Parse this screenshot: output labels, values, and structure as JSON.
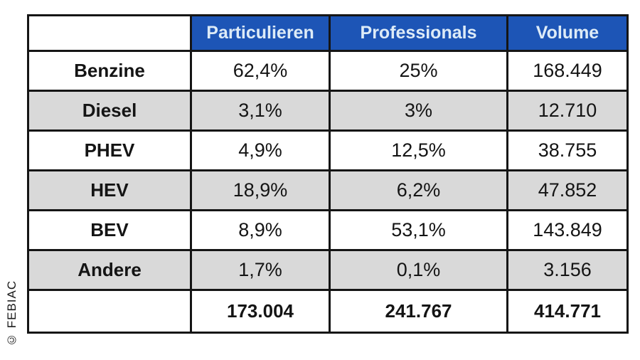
{
  "chart_data": {
    "type": "table",
    "columns": [
      "",
      "Particulieren",
      "Professionals",
      "Volume"
    ],
    "rows": [
      {
        "label": "Benzine",
        "particulieren": "62,4%",
        "professionals": "25%",
        "volume": "168.449"
      },
      {
        "label": "Diesel",
        "particulieren": "3,1%",
        "professionals": "3%",
        "volume": "12.710"
      },
      {
        "label": "PHEV",
        "particulieren": "4,9%",
        "professionals": "12,5%",
        "volume": "38.755"
      },
      {
        "label": "HEV",
        "particulieren": "18,9%",
        "professionals": "6,2%",
        "volume": "47.852"
      },
      {
        "label": "BEV",
        "particulieren": "8,9%",
        "professionals": "53,1%",
        "volume": "143.849"
      },
      {
        "label": "Andere",
        "particulieren": "1,7%",
        "professionals": "0,1%",
        "volume": "3.156"
      }
    ],
    "totals": {
      "label": "",
      "particulieren": "173.004",
      "professionals": "241.767",
      "volume": "414.771"
    },
    "title": "",
    "layout_hints": {
      "shaded_rows": "even",
      "header_style": "blue-banner",
      "grid": "on"
    }
  },
  "watermark": "© FEBIAC",
  "colors": {
    "header_bg": "#1D55B6",
    "header_text": "#DDEBF7",
    "shaded_row_bg": "#D9D9D9",
    "border": "#151515"
  }
}
